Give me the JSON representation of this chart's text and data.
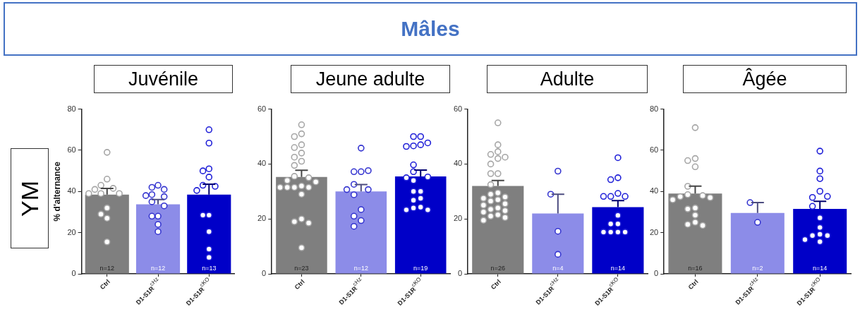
{
  "chart_data": [
    {
      "type": "bar",
      "title": "Juvénile",
      "ylabel": "% d'alternance",
      "annotations": [
        "Mâles",
        "YM",
        {
          "text": "n=12",
          "x": "Ctrl",
          "y": 0
        },
        {
          "text": "n=12",
          "x": "D1-S1R$^{cHz}$",
          "y": 0
        },
        {
          "text": "n=13",
          "x": "D1-S1R$^{cKO}$",
          "y": 0
        }
      ],
      "categories": [
        "Ctrl",
        "D1-S1R$^{cHz}$",
        "D1-S1R$^{cKO}$"
      ],
      "ylim": [
        0,
        80
      ],
      "yticks": [
        0,
        20,
        40,
        60,
        80
      ],
      "legend": false,
      "marker": "circle",
      "series": [
        {
          "colors": [
            "#7f7f7f",
            "#8c8ce8",
            "#0000c8"
          ],
          "values": [
            38.5,
            33.8,
            38.5
          ],
          "errors": [
            [
              38.5,
              41.5
            ],
            [
              33.8,
              36.1
            ],
            [
              38.5,
              43.5
            ]
          ]
        },
        {
          "type": "scatter",
          "color": "#a6a6a6",
          "x": [
            "Ctrl",
            "Ctrl",
            "Ctrl",
            "Ctrl",
            "Ctrl",
            "Ctrl",
            "Ctrl",
            "Ctrl",
            "Ctrl",
            "Ctrl",
            "Ctrl",
            "Ctrl"
          ],
          "values": [
            59,
            46,
            43,
            41.5,
            41,
            39,
            39,
            39,
            32,
            29,
            27,
            15.5
          ]
        },
        {
          "type": "scatter",
          "color": "#3535d0",
          "x": [
            "D1-S1R$^{cHz}$",
            "D1-S1R$^{cHz}$",
            "D1-S1R$^{cHz}$",
            "D1-S1R$^{cHz}$",
            "D1-S1R$^{cHz}$",
            "D1-S1R$^{cHz}$",
            "D1-S1R$^{cHz}$",
            "D1-S1R$^{cHz}$",
            "D1-S1R$^{cHz}$",
            "D1-S1R$^{cHz}$",
            "D1-S1R$^{cHz}$",
            "D1-S1R$^{cHz}$"
          ],
          "values": [
            43,
            42,
            41,
            38.5,
            38,
            37.5,
            35,
            33,
            28,
            28,
            24,
            20.5
          ]
        },
        {
          "type": "scatter",
          "color": "#2020d8",
          "x": [
            "D1-S1R$^{cKO}$",
            "D1-S1R$^{cKO}$",
            "D1-S1R$^{cKO}$",
            "D1-S1R$^{cKO}$",
            "D1-S1R$^{cKO}$",
            "D1-S1R$^{cKO}$",
            "D1-S1R$^{cKO}$",
            "D1-S1R$^{cKO}$",
            "D1-S1R$^{cKO}$",
            "D1-S1R$^{cKO}$",
            "D1-S1R$^{cKO}$",
            "D1-S1R$^{cKO}$",
            "D1-S1R$^{cKO}$"
          ],
          "values": [
            70,
            63.5,
            51,
            50,
            47,
            43,
            42.5,
            40.5,
            28.5,
            28.5,
            20.5,
            12,
            8
          ]
        }
      ]
    },
    {
      "type": "bar",
      "title": "Jeune adulte",
      "annotations": [
        {
          "text": "n=23",
          "x": "Ctrl",
          "y": 0
        },
        {
          "text": "n=12",
          "x": "D1-S1R$^{cHz}$",
          "y": 0
        },
        {
          "text": "n=19",
          "x": "D1-S1R$^{cKO}$",
          "y": 0
        }
      ],
      "categories": [
        "Ctrl",
        "D1-S1R$^{cHz}$",
        "D1-S1R$^{cKO}$"
      ],
      "ylim": [
        0,
        60
      ],
      "yticks": [
        0,
        20,
        40,
        60
      ],
      "legend": false,
      "marker": "circle",
      "series": [
        {
          "colors": [
            "#7f7f7f",
            "#8c8ce8",
            "#0000c8"
          ],
          "values": [
            35.3,
            30,
            35.5
          ],
          "errors": [
            [
              35.3,
              37.7
            ],
            [
              30,
              32.5
            ],
            [
              35.5,
              37.8
            ]
          ]
        },
        {
          "type": "scatter",
          "color": "#a6a6a6",
          "x": [
            "Ctrl",
            "Ctrl",
            "Ctrl",
            "Ctrl",
            "Ctrl",
            "Ctrl",
            "Ctrl",
            "Ctrl",
            "Ctrl",
            "Ctrl",
            "Ctrl",
            "Ctrl",
            "Ctrl",
            "Ctrl",
            "Ctrl",
            "Ctrl",
            "Ctrl",
            "Ctrl",
            "Ctrl",
            "Ctrl",
            "Ctrl",
            "Ctrl",
            "Ctrl"
          ],
          "values": [
            54.3,
            51,
            50,
            47,
            46,
            44,
            42.5,
            41,
            39.5,
            35.5,
            35,
            34,
            33.5,
            32,
            31.5,
            31.5,
            31.5,
            31.5,
            29,
            20,
            19,
            18.5,
            9.5
          ]
        },
        {
          "type": "scatter",
          "color": "#3535d0",
          "x": [
            "D1-S1R$^{cHz}$",
            "D1-S1R$^{cHz}$",
            "D1-S1R$^{cHz}$",
            "D1-S1R$^{cHz}$",
            "D1-S1R$^{cHz}$",
            "D1-S1R$^{cHz}$",
            "D1-S1R$^{cHz}$",
            "D1-S1R$^{cHz}$",
            "D1-S1R$^{cHz}$",
            "D1-S1R$^{cHz}$",
            "D1-S1R$^{cHz}$",
            "D1-S1R$^{cHz}$"
          ],
          "values": [
            45.8,
            37.2,
            37.2,
            37.6,
            32.6,
            30.7,
            30.7,
            28.8,
            23.4,
            21,
            19.4,
            17.3
          ]
        },
        {
          "type": "scatter",
          "color": "#2020d8",
          "x": [
            "D1-S1R$^{cKO}$",
            "D1-S1R$^{cKO}$",
            "D1-S1R$^{cKO}$",
            "D1-S1R$^{cKO}$",
            "D1-S1R$^{cKO}$",
            "D1-S1R$^{cKO}$",
            "D1-S1R$^{cKO}$",
            "D1-S1R$^{cKO}$",
            "D1-S1R$^{cKO}$",
            "D1-S1R$^{cKO}$",
            "D1-S1R$^{cKO}$",
            "D1-S1R$^{cKO}$",
            "D1-S1R$^{cKO}$",
            "D1-S1R$^{cKO}$",
            "D1-S1R$^{cKO}$",
            "D1-S1R$^{cKO}$",
            "D1-S1R$^{cKO}$",
            "D1-S1R$^{cKO}$",
            "D1-S1R$^{cKO}$"
          ],
          "values": [
            50,
            50,
            47.7,
            47,
            46.6,
            46.4,
            39.7,
            37.2,
            35.3,
            35,
            34,
            30,
            30,
            27.5,
            26.8,
            24.3,
            24,
            23.3,
            23.3
          ]
        }
      ]
    },
    {
      "type": "bar",
      "title": "Adulte",
      "annotations": [
        {
          "text": "n=26",
          "x": "Ctrl",
          "y": 0
        },
        {
          "text": "n=4",
          "x": "D1-S1R$^{cHz}$",
          "y": 0
        },
        {
          "text": "n=14",
          "x": "D1-S1R$^{cKO}$",
          "y": 0
        }
      ],
      "categories": [
        "Ctrl",
        "D1-S1R$^{cHz}$",
        "D1-S1R$^{cKO}$"
      ],
      "ylim": [
        0,
        60
      ],
      "yticks": [
        0,
        20,
        40,
        60
      ],
      "legend": false,
      "marker": "circle",
      "series": [
        {
          "colors": [
            "#7f7f7f",
            "#8c8ce8",
            "#0000c8"
          ],
          "values": [
            32,
            22,
            24.3
          ],
          "errors": [
            [
              32,
              34
            ],
            [
              22,
              29
            ],
            [
              24.3,
              26.7
            ]
          ]
        },
        {
          "type": "scatter",
          "color": "#a6a6a6",
          "x": [
            "Ctrl",
            "Ctrl",
            "Ctrl",
            "Ctrl",
            "Ctrl",
            "Ctrl",
            "Ctrl",
            "Ctrl",
            "Ctrl",
            "Ctrl",
            "Ctrl",
            "Ctrl",
            "Ctrl",
            "Ctrl",
            "Ctrl",
            "Ctrl",
            "Ctrl",
            "Ctrl",
            "Ctrl",
            "Ctrl",
            "Ctrl",
            "Ctrl",
            "Ctrl",
            "Ctrl",
            "Ctrl",
            "Ctrl"
          ],
          "values": [
            55,
            47,
            44.5,
            43.5,
            42.5,
            42,
            40,
            36.5,
            36.5,
            32.5,
            29.5,
            29,
            28,
            27.5,
            27,
            26.5,
            25.5,
            25,
            24,
            23.5,
            23,
            22.5,
            21.5,
            21,
            20.5,
            19.5
          ]
        },
        {
          "type": "scatter",
          "color": "#3535d0",
          "x": [
            "D1-S1R$^{cHz}$",
            "D1-S1R$^{cHz}$",
            "D1-S1R$^{cHz}$",
            "D1-S1R$^{cHz}$"
          ],
          "values": [
            37.4,
            29,
            15.5,
            7.1
          ]
        },
        {
          "type": "scatter",
          "color": "#2020d8",
          "x": [
            "D1-S1R$^{cKO}$",
            "D1-S1R$^{cKO}$",
            "D1-S1R$^{cKO}$",
            "D1-S1R$^{cKO}$",
            "D1-S1R$^{cKO}$",
            "D1-S1R$^{cKO}$",
            "D1-S1R$^{cKO}$",
            "D1-S1R$^{cKO}$",
            "D1-S1R$^{cKO}$",
            "D1-S1R$^{cKO}$",
            "D1-S1R$^{cKO}$",
            "D1-S1R$^{cKO}$",
            "D1-S1R$^{cKO}$",
            "D1-S1R$^{cKO}$"
          ],
          "values": [
            42.3,
            35,
            34.3,
            29.3,
            28.2,
            28.2,
            28.2,
            21.3,
            18.2,
            18.2,
            15.2,
            15.2,
            15.2,
            15.2
          ]
        }
      ]
    },
    {
      "type": "bar",
      "title": "Âgée",
      "annotations": [
        {
          "text": "n=16",
          "x": "Ctrl",
          "y": 0
        },
        {
          "text": "n=2",
          "x": "D1-S1R$^{cHz}$",
          "y": 0
        },
        {
          "text": "n=14",
          "x": "D1-S1R$^{cKO}$",
          "y": 0
        }
      ],
      "categories": [
        "Ctrl",
        "D1-S1R$^{cHz}$",
        "D1-S1R$^{cKO}$"
      ],
      "ylim": [
        0,
        80
      ],
      "yticks": [
        0,
        20,
        40,
        60,
        80
      ],
      "legend": false,
      "marker": "circle",
      "series": [
        {
          "colors": [
            "#7f7f7f",
            "#8c8ce8",
            "#0000c8"
          ],
          "values": [
            39,
            29.6,
            31.5
          ],
          "errors": [
            [
              39,
              42.6
            ],
            [
              29.6,
              34.6
            ],
            [
              31.5,
              35.2
            ]
          ]
        },
        {
          "type": "scatter",
          "color": "#a6a6a6",
          "x": [
            "Ctrl",
            "Ctrl",
            "Ctrl",
            "Ctrl",
            "Ctrl",
            "Ctrl",
            "Ctrl",
            "Ctrl",
            "Ctrl",
            "Ctrl",
            "Ctrl",
            "Ctrl",
            "Ctrl",
            "Ctrl",
            "Ctrl",
            "Ctrl"
          ],
          "values": [
            71,
            56,
            55,
            52,
            42.5,
            38.5,
            38,
            37.5,
            37,
            36,
            32,
            31.5,
            28.5,
            25,
            24,
            23.5
          ]
        },
        {
          "type": "scatter",
          "color": "#3535d0",
          "x": [
            "D1-S1R$^{cHz}$",
            "D1-S1R$^{cHz}$"
          ],
          "values": [
            34.6,
            25
          ]
        },
        {
          "type": "scatter",
          "color": "#2020d8",
          "x": [
            "D1-S1R$^{cKO}$",
            "D1-S1R$^{cKO}$",
            "D1-S1R$^{cKO}$",
            "D1-S1R$^{cKO}$",
            "D1-S1R$^{cKO}$",
            "D1-S1R$^{cKO}$",
            "D1-S1R$^{cKO}$",
            "D1-S1R$^{cKO}$",
            "D1-S1R$^{cKO}$",
            "D1-S1R$^{cKO}$",
            "D1-S1R$^{cKO}$",
            "D1-S1R$^{cKO}$",
            "D1-S1R$^{cKO}$",
            "D1-S1R$^{cKO}$"
          ],
          "values": [
            59.6,
            49.9,
            46.2,
            40.1,
            37.1,
            37.6,
            32.8,
            27.2,
            22.5,
            19.2,
            18.6,
            18.6,
            16.6,
            15.6
          ]
        }
      ]
    }
  ]
}
